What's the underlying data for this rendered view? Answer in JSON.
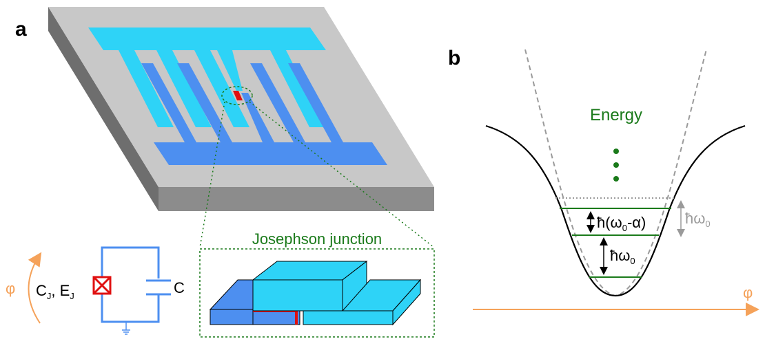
{
  "panel_a": {
    "label": "a",
    "junction_title": "Josephson junction",
    "phase_symbol": "φ",
    "circuit": {
      "junction_label": "C",
      "junction_sub": "J",
      "junction_sep": ", E",
      "junction_sub2": "J",
      "capacitor_label": "C"
    }
  },
  "panel_b": {
    "label": "b",
    "energy_label": "Energy",
    "phase_axis_label": "φ",
    "level_spacing_top": {
      "prefix": "ħ(ω",
      "sub": "0",
      "suffix": "-α)"
    },
    "level_spacing_bottom": {
      "prefix": "ħω",
      "sub": "0"
    },
    "harmonic_spacing": {
      "prefix": "ħω",
      "sub": "0"
    }
  },
  "colors": {
    "light_blue": "#2ed3f7",
    "mid_blue": "#4d8ff0",
    "chip_gray": "#c8c8c8",
    "chip_dark": "#6e6e6e",
    "green": "#1a7a1a",
    "red": "#e01010",
    "orange": "#f5a25a",
    "gray_text": "#9a9a9a"
  }
}
